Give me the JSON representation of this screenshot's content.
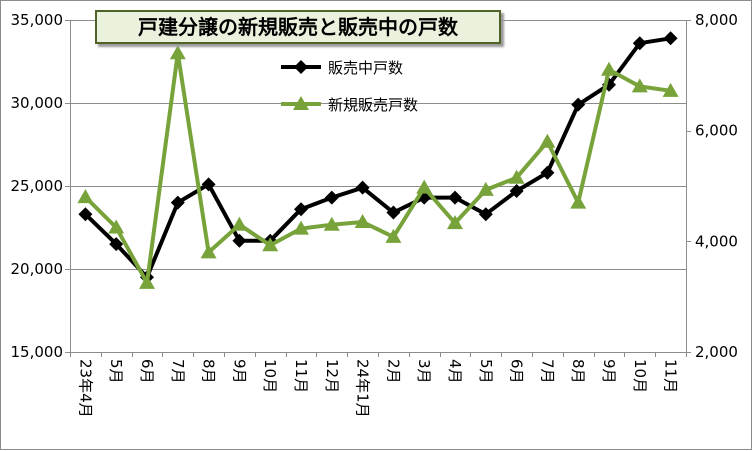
{
  "chart_data": {
    "type": "line",
    "title": "戸建分譲の新規販売と販売中の戸数",
    "categories": [
      "23年4月",
      "5月",
      "6月",
      "7月",
      "8月",
      "9月",
      "10月",
      "11月",
      "12月",
      "24年1月",
      "2月",
      "3月",
      "4月",
      "5月",
      "6月",
      "7月",
      "8月",
      "9月",
      "10月",
      "11月"
    ],
    "y_left": {
      "min": 15000,
      "max": 35000,
      "step": 5000,
      "tick_labels": [
        "15,000",
        "20,000",
        "25,000",
        "30,000",
        "35,000"
      ]
    },
    "y_right": {
      "min": 2000,
      "max": 8000,
      "step": 2000,
      "tick_labels": [
        "2,000",
        "4,000",
        "6,000",
        "8,000"
      ]
    },
    "grid": true,
    "legend_position": "top-center",
    "series": [
      {
        "name": "販売中戸数",
        "axis": "left",
        "color": "#000000",
        "marker": "diamond",
        "values": [
          23300,
          21500,
          19500,
          24000,
          25100,
          21700,
          21700,
          23600,
          24300,
          24900,
          23400,
          24300,
          24300,
          23300,
          24700,
          25800,
          29900,
          31100,
          33600,
          33900
        ]
      },
      {
        "name": "新規販売戸数",
        "axis": "right",
        "color": "#77a33a",
        "marker": "triangle",
        "values": [
          4800,
          4250,
          3250,
          7400,
          3800,
          4300,
          3930,
          4230,
          4300,
          4350,
          4080,
          4970,
          4330,
          4930,
          5150,
          5800,
          4700,
          7100,
          6800,
          6720
        ]
      }
    ]
  }
}
